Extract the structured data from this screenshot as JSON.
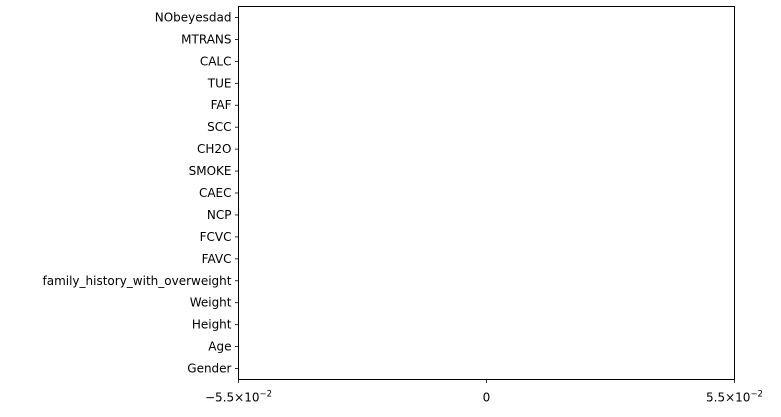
{
  "chart_data": {
    "type": "bar",
    "orientation": "horizontal",
    "title": "",
    "xlabel": "",
    "ylabel": "",
    "categories": [
      "Gender",
      "Age",
      "Height",
      "Weight",
      "family_history_with_overweight",
      "FAVC",
      "FCVC",
      "NCP",
      "CAEC",
      "SMOKE",
      "CH2O",
      "SCC",
      "FAF",
      "TUE",
      "CALC",
      "MTRANS",
      "NObeyesdad"
    ],
    "values": [
      0,
      0,
      0,
      0,
      0,
      0,
      0,
      0,
      0,
      0,
      0,
      0,
      0,
      0,
      0,
      0,
      0
    ],
    "xlim": [
      -0.055,
      0.055
    ],
    "x_ticks": [
      {
        "value": -0.055,
        "mantissa": "−5.5",
        "exponent": "−2"
      },
      {
        "value": 0,
        "label": "0"
      },
      {
        "value": 0.055,
        "mantissa": "5.5",
        "exponent": "−2"
      }
    ],
    "x_scale": "symlog",
    "grid": false,
    "legend": "none"
  }
}
